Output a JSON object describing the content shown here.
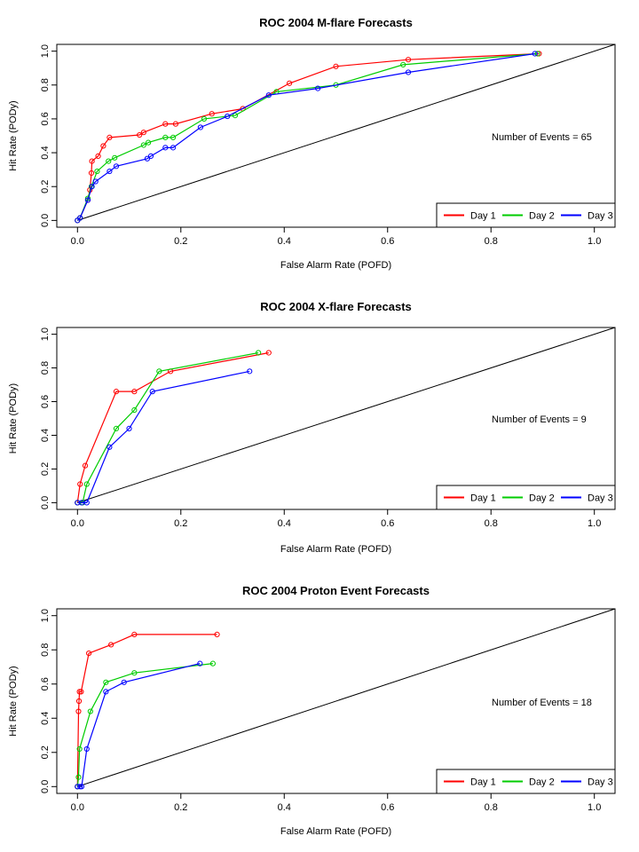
{
  "chart_data": [
    {
      "type": "line",
      "title": "ROC  2004 M-flare Forecasts",
      "xlabel": "False Alarm Rate (POFD)",
      "ylabel": "Hit Rate (PODy)",
      "xlim": [
        0,
        1.0
      ],
      "ylim": [
        0,
        1.0
      ],
      "xticks": [
        "0.0",
        "0.2",
        "0.4",
        "0.6",
        "0.8",
        "1.0"
      ],
      "yticks": [
        "0.0",
        "0.2",
        "0.4",
        "0.6",
        "0.8",
        "1.0"
      ],
      "annotation": "Number of Events =  65",
      "legend_position": "bottom-right",
      "diagonal": true,
      "series": [
        {
          "name": "Day 1",
          "color": "#ff0000",
          "points": [
            [
              0.0,
              0.0
            ],
            [
              0.005,
              0.015
            ],
            [
              0.02,
              0.12
            ],
            [
              0.024,
              0.18
            ],
            [
              0.027,
              0.28
            ],
            [
              0.028,
              0.35
            ],
            [
              0.04,
              0.38
            ],
            [
              0.05,
              0.44
            ],
            [
              0.062,
              0.49
            ],
            [
              0.12,
              0.505
            ],
            [
              0.128,
              0.52
            ],
            [
              0.17,
              0.57
            ],
            [
              0.19,
              0.57
            ],
            [
              0.26,
              0.63
            ],
            [
              0.32,
              0.66
            ],
            [
              0.41,
              0.81
            ],
            [
              0.5,
              0.91
            ],
            [
              0.64,
              0.95
            ],
            [
              0.893,
              0.985
            ]
          ]
        },
        {
          "name": "Day 2",
          "color": "#00cc00",
          "points": [
            [
              0.0,
              0.0
            ],
            [
              0.005,
              0.015
            ],
            [
              0.02,
              0.13
            ],
            [
              0.027,
              0.2
            ],
            [
              0.038,
              0.29
            ],
            [
              0.06,
              0.35
            ],
            [
              0.072,
              0.37
            ],
            [
              0.128,
              0.445
            ],
            [
              0.137,
              0.46
            ],
            [
              0.17,
              0.49
            ],
            [
              0.185,
              0.49
            ],
            [
              0.245,
              0.6
            ],
            [
              0.305,
              0.62
            ],
            [
              0.385,
              0.76
            ],
            [
              0.5,
              0.8
            ],
            [
              0.63,
              0.92
            ],
            [
              0.89,
              0.985
            ]
          ]
        },
        {
          "name": "Day 3",
          "color": "#0000ff",
          "points": [
            [
              0.0,
              0.0
            ],
            [
              0.005,
              0.015
            ],
            [
              0.02,
              0.12
            ],
            [
              0.028,
              0.2
            ],
            [
              0.035,
              0.23
            ],
            [
              0.062,
              0.29
            ],
            [
              0.075,
              0.32
            ],
            [
              0.135,
              0.365
            ],
            [
              0.142,
              0.38
            ],
            [
              0.17,
              0.43
            ],
            [
              0.185,
              0.43
            ],
            [
              0.238,
              0.55
            ],
            [
              0.29,
              0.615
            ],
            [
              0.37,
              0.74
            ],
            [
              0.465,
              0.78
            ],
            [
              0.64,
              0.875
            ],
            [
              0.885,
              0.985
            ]
          ]
        }
      ]
    },
    {
      "type": "line",
      "title": "ROC  2004 X-flare Forecasts",
      "xlabel": "False Alarm Rate (POFD)",
      "ylabel": "Hit Rate (PODy)",
      "xlim": [
        0,
        1.0
      ],
      "ylim": [
        0,
        1.0
      ],
      "xticks": [
        "0.0",
        "0.2",
        "0.4",
        "0.6",
        "0.8",
        "1.0"
      ],
      "yticks": [
        "0.0",
        "0.2",
        "0.4",
        "0.6",
        "0.8",
        "1.0"
      ],
      "annotation": "Number of Events =  9",
      "legend_position": "bottom-right",
      "diagonal": true,
      "series": [
        {
          "name": "Day 1",
          "color": "#ff0000",
          "points": [
            [
              0.0,
              0.0
            ],
            [
              0.005,
              0.11
            ],
            [
              0.015,
              0.22
            ],
            [
              0.075,
              0.66
            ],
            [
              0.11,
              0.66
            ],
            [
              0.18,
              0.78
            ],
            [
              0.37,
              0.89
            ]
          ]
        },
        {
          "name": "Day 2",
          "color": "#00cc00",
          "points": [
            [
              0.0,
              0.0
            ],
            [
              0.01,
              0.0
            ],
            [
              0.018,
              0.11
            ],
            [
              0.075,
              0.44
            ],
            [
              0.11,
              0.55
            ],
            [
              0.158,
              0.78
            ],
            [
              0.35,
              0.89
            ]
          ]
        },
        {
          "name": "Day 3",
          "color": "#0000ff",
          "points": [
            [
              0.0,
              0.0
            ],
            [
              0.008,
              0.0
            ],
            [
              0.018,
              0.0
            ],
            [
              0.062,
              0.33
            ],
            [
              0.1,
              0.44
            ],
            [
              0.145,
              0.66
            ],
            [
              0.333,
              0.78
            ]
          ]
        }
      ]
    },
    {
      "type": "line",
      "title": "ROC  2004 Proton Event Forecasts",
      "xlabel": "False Alarm Rate (POFD)",
      "ylabel": "Hit Rate (PODy)",
      "xlim": [
        0,
        1.0
      ],
      "ylim": [
        0,
        1.0
      ],
      "xticks": [
        "0.0",
        "0.2",
        "0.4",
        "0.6",
        "0.8",
        "1.0"
      ],
      "yticks": [
        "0.0",
        "0.2",
        "0.4",
        "0.6",
        "0.8",
        "1.0"
      ],
      "annotation": "Number of Events =  18",
      "legend_position": "bottom-right",
      "diagonal": true,
      "series": [
        {
          "name": "Day 1",
          "color": "#ff0000",
          "points": [
            [
              0.0,
              0.0
            ],
            [
              0.002,
              0.44
            ],
            [
              0.003,
              0.5
            ],
            [
              0.004,
              0.555
            ],
            [
              0.007,
              0.555
            ],
            [
              0.022,
              0.78
            ],
            [
              0.065,
              0.83
            ],
            [
              0.11,
              0.89
            ],
            [
              0.27,
              0.89
            ]
          ]
        },
        {
          "name": "Day 2",
          "color": "#00cc00",
          "points": [
            [
              0.0,
              0.0
            ],
            [
              0.002,
              0.055
            ],
            [
              0.004,
              0.22
            ],
            [
              0.025,
              0.44
            ],
            [
              0.055,
              0.61
            ],
            [
              0.11,
              0.665
            ],
            [
              0.262,
              0.72
            ]
          ]
        },
        {
          "name": "Day 3",
          "color": "#0000ff",
          "points": [
            [
              0.0,
              0.0
            ],
            [
              0.005,
              0.0
            ],
            [
              0.008,
              0.0
            ],
            [
              0.018,
              0.22
            ],
            [
              0.055,
              0.555
            ],
            [
              0.09,
              0.61
            ],
            [
              0.237,
              0.72
            ]
          ]
        }
      ]
    }
  ]
}
